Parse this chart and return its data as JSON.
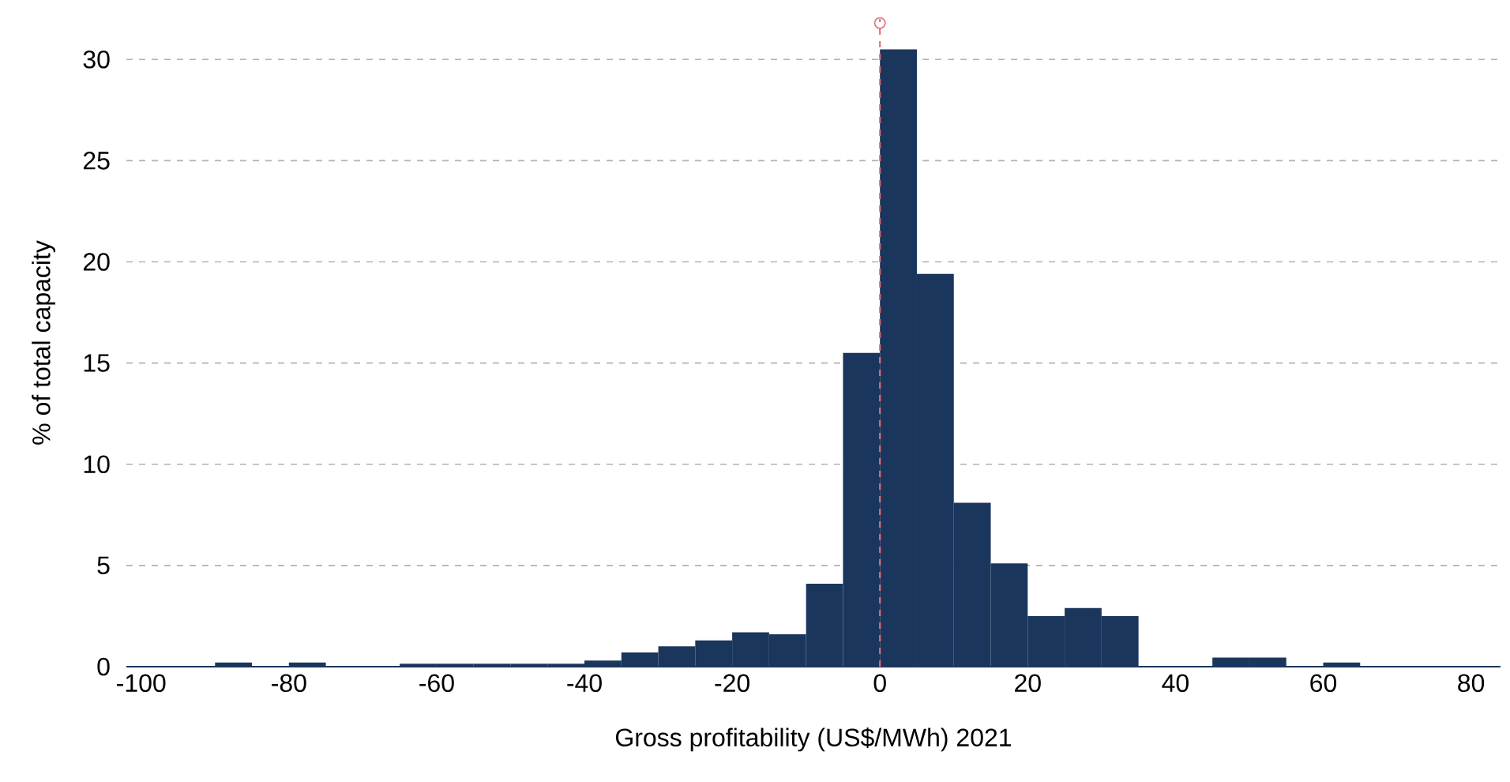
{
  "chart_data": {
    "type": "histogram",
    "xlabel": "Gross profitability (US$/MWh) 2021",
    "ylabel": "% of total capacity",
    "bins": [
      -100,
      -95,
      -90,
      -85,
      -80,
      -75,
      -70,
      -65,
      -60,
      -55,
      -50,
      -45,
      -40,
      -35,
      -30,
      -25,
      -20,
      -15,
      -10,
      -5,
      0,
      5,
      10,
      15,
      20,
      25,
      30,
      35,
      40,
      45,
      50,
      55,
      60,
      65,
      70,
      75,
      80
    ],
    "values": [
      0,
      0,
      0.2,
      0,
      0.2,
      0,
      0,
      0.15,
      0.15,
      0.15,
      0.15,
      0.15,
      0.3,
      0.7,
      1.0,
      1.3,
      1.7,
      1.6,
      4.1,
      15.5,
      30.5,
      19.4,
      8.1,
      5.1,
      2.5,
      2.9,
      2.5,
      0,
      0,
      0.45,
      0.45,
      0,
      0.2,
      0,
      0,
      0
    ],
    "color": "#1b365d",
    "xlim": [
      -102,
      84
    ],
    "ylim": [
      0,
      32
    ],
    "xticks": [
      -100,
      -80,
      -60,
      -40,
      -20,
      0,
      20,
      40,
      60,
      80
    ],
    "yticks": [
      0,
      5,
      10,
      15,
      20,
      25,
      30
    ],
    "grid": "y",
    "series": [
      {
        "type": "scatter",
        "x": [
          0
        ],
        "values": [
          31.8
        ],
        "color": "#e0707a"
      }
    ],
    "marker": "circle",
    "ref_lines": [
      {
        "axis": "x",
        "value": 0,
        "color": "#e0707a",
        "line_style": "dashed"
      }
    ]
  }
}
